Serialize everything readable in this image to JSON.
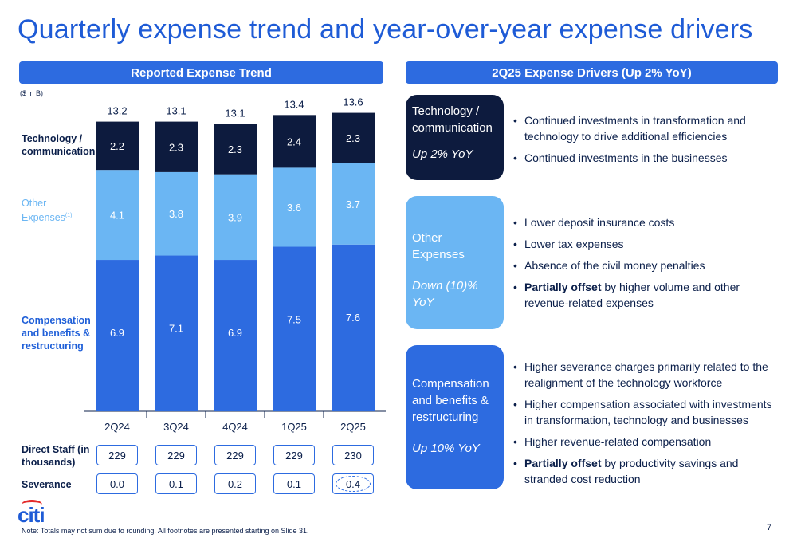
{
  "title": "Quarterly expense trend and year-over-year expense drivers",
  "left_header": "Reported Expense Trend",
  "right_header": "2Q25 Expense Drivers (Up 2% YoY)",
  "unit_note": "($ in B)",
  "legend": {
    "tech": "Technology / communication",
    "other": "Other Expenses",
    "other_sup": "(1)",
    "comp": "Compensation and benefits & restructuring"
  },
  "colors": {
    "tech": "#0d1b3e",
    "other": "#6bb6f3",
    "comp": "#2d6be0",
    "accent": "#1e5bd6"
  },
  "chart_data": {
    "type": "bar",
    "stacked": true,
    "categories": [
      "2Q24",
      "3Q24",
      "4Q24",
      "1Q25",
      "2Q25"
    ],
    "series": [
      {
        "name": "Compensation and benefits & restructuring",
        "values": [
          6.9,
          7.1,
          6.9,
          7.5,
          7.6
        ]
      },
      {
        "name": "Other Expenses",
        "values": [
          4.1,
          3.8,
          3.9,
          3.6,
          3.7
        ]
      },
      {
        "name": "Technology / communication",
        "values": [
          2.2,
          2.3,
          2.3,
          2.4,
          2.3
        ]
      }
    ],
    "totals": [
      "13.2",
      "13.1",
      "13.1",
      "13.4",
      "13.6"
    ],
    "value_labels": [
      [
        "6.9",
        "7.1",
        "6.9",
        "7.5",
        "7.6"
      ],
      [
        "4.1",
        "3.8",
        "3.9",
        "3.6",
        "3.7"
      ],
      [
        "2.2",
        "2.3",
        "2.3",
        "2.4",
        "2.3"
      ]
    ],
    "ylim": [
      0,
      13.6
    ]
  },
  "rows": {
    "staff_label": "Direct Staff (in thousands)",
    "staff_values": [
      "229",
      "229",
      "229",
      "229",
      "230"
    ],
    "sev_label": "Severance",
    "sev_values": [
      "0.0",
      "0.1",
      "0.2",
      "0.1",
      "0.4"
    ]
  },
  "drivers": {
    "tech": {
      "title": "Technology / communication",
      "change": "Up 2% YoY",
      "bullets": [
        "Continued investments in transformation and technology to drive additional efficiencies",
        "Continued investments in the businesses"
      ]
    },
    "other": {
      "title": "Other Expenses",
      "change": "Down (10)% YoY",
      "bullets": [
        "Lower deposit insurance costs",
        "Lower tax expenses",
        "Absence of the civil money penalties"
      ],
      "bullet_bold": "Partially offset",
      "bullet_rest": " by higher volume and other revenue-related expenses"
    },
    "comp": {
      "title": "Compensation and benefits & restructuring",
      "change": "Up 10% YoY",
      "bullets": [
        "Higher severance charges primarily related to the realignment of the technology workforce",
        "Higher compensation associated with investments in transformation, technology and businesses",
        "Higher revenue-related compensation"
      ],
      "bullet_bold": "Partially offset",
      "bullet_rest": " by productivity savings and stranded cost reduction"
    }
  },
  "logo": "citi",
  "footnote": "Note:  Totals may not sum due to rounding. All footnotes are presented starting on Slide 31.",
  "page_number": "7"
}
